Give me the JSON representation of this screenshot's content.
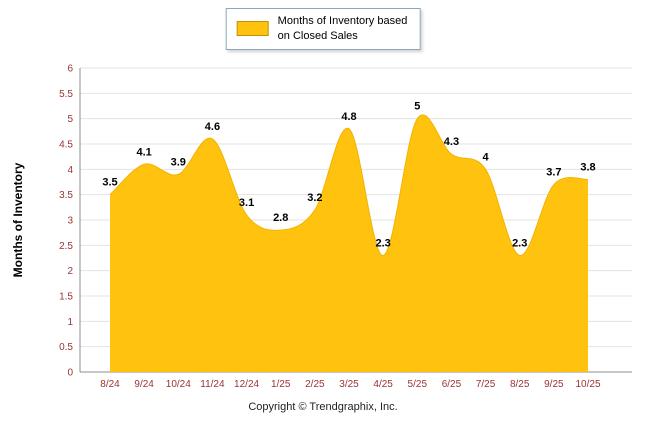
{
  "legend": {
    "line1": "Months of Inventory based",
    "line2": "on Closed Sales"
  },
  "footer": "Copyright © Trendgraphix, Inc.",
  "chart_data": {
    "type": "area",
    "title": "",
    "categories": [
      "8/24",
      "9/24",
      "10/24",
      "11/24",
      "12/24",
      "1/25",
      "2/25",
      "3/25",
      "4/25",
      "5/25",
      "6/25",
      "7/25",
      "8/25",
      "9/25",
      "10/25"
    ],
    "values": [
      3.5,
      4.1,
      3.9,
      4.6,
      3.1,
      2.8,
      3.2,
      4.8,
      2.3,
      5,
      4.3,
      4,
      2.3,
      3.7,
      3.8
    ],
    "point_labels": [
      "3.5",
      "4.1",
      "3.9",
      "4.6",
      "3.1",
      "2.8",
      "3.2",
      "4.8",
      "2.3",
      "5",
      "4.3",
      "4",
      "2.3",
      "3.7",
      "3.8"
    ],
    "xlabel": "",
    "ylabel": "Months of Inventory",
    "ylim": [
      0,
      6
    ],
    "ytick_step": 0.5,
    "grid": true,
    "legend_entries": [
      "Months of Inventory based on Closed Sales"
    ],
    "legend_position": "top-center",
    "colors": {
      "area_fill": "#FFC20E",
      "area_stroke": "#F0B400",
      "axis_label": "#993333",
      "grid": "#E3E3E3",
      "axis_line": "#8C8C8C",
      "data_label": "#000000",
      "background": "#FFFFFF"
    }
  }
}
